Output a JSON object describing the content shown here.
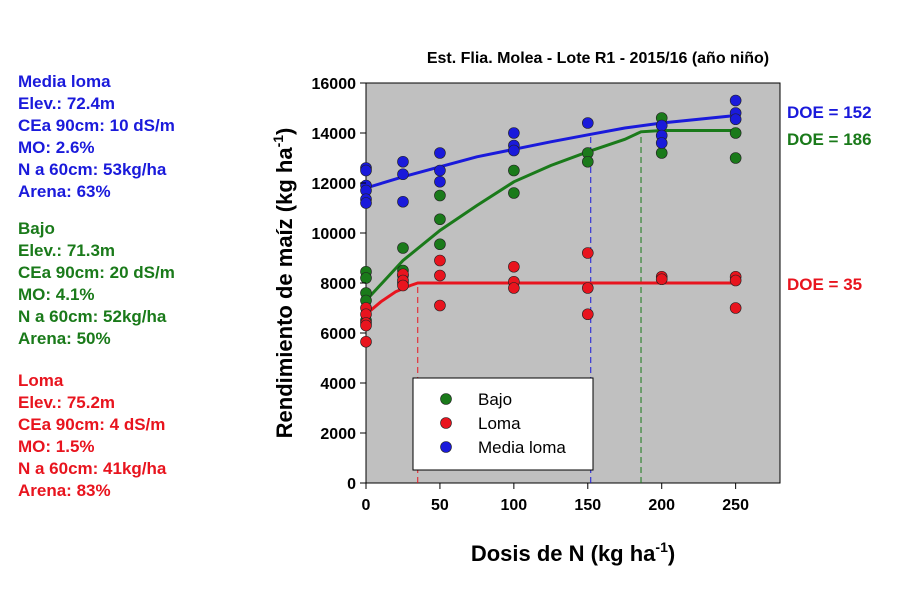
{
  "side_panels": [
    {
      "title": "Media loma",
      "color": "#1a1adb",
      "lines": [
        "Elev.: 72.4m",
        "CEa 90cm: 10 dS/m",
        "MO: 2.6%",
        "N a 60cm: 53kg/ha",
        "Arena: 63%"
      ]
    },
    {
      "title": "Bajo",
      "color": "#1a7a1a",
      "lines": [
        "Elev.: 71.3m",
        "CEa 90cm: 20 dS/m",
        "MO: 4.1%",
        "N a 60cm: 52kg/ha",
        "Arena: 50%"
      ]
    },
    {
      "title": "Loma",
      "color": "#e8141e",
      "lines": [
        "Elev.: 75.2m",
        "CEa 90cm: 4 dS/m",
        "MO: 1.5%",
        "N a 60cm: 41kg/ha",
        "Arena: 83%"
      ]
    }
  ],
  "chart_data": {
    "type": "scatter",
    "title": "Est.  Flia. Molea - Lote R1 - 2015/16 (año niño)",
    "xlabel": "Dosis de N (kg ha",
    "xlabel_sup": "-1",
    "xlabel_end": ")",
    "ylabel": "Rendimiento de maíz (kg ha",
    "ylabel_sup": "-1",
    "ylabel_end": ")",
    "xlim": [
      0,
      280
    ],
    "ylim": [
      0,
      16000
    ],
    "xticks": [
      0,
      50,
      100,
      150,
      200,
      250
    ],
    "yticks": [
      0,
      2000,
      4000,
      6000,
      8000,
      10000,
      12000,
      14000,
      16000
    ],
    "plot_background": "#c0c0c0",
    "legend_position": "bottom-center",
    "series": [
      {
        "name": "Bajo",
        "color": "#1a7a1a",
        "points": [
          [
            0,
            8450
          ],
          [
            0,
            8200
          ],
          [
            0,
            7600
          ],
          [
            0,
            7300
          ],
          [
            0,
            6500
          ],
          [
            25,
            9400
          ],
          [
            25,
            8500
          ],
          [
            25,
            8300
          ],
          [
            25,
            8000
          ],
          [
            50,
            11500
          ],
          [
            50,
            10550
          ],
          [
            50,
            9550
          ],
          [
            100,
            12500
          ],
          [
            100,
            11600
          ],
          [
            150,
            13200
          ],
          [
            150,
            12850
          ],
          [
            200,
            14600
          ],
          [
            200,
            13200
          ],
          [
            250,
            14000
          ],
          [
            250,
            13000
          ]
        ],
        "fit": [
          [
            0,
            7300
          ],
          [
            25,
            8900
          ],
          [
            50,
            10100
          ],
          [
            75,
            11100
          ],
          [
            100,
            12050
          ],
          [
            125,
            12700
          ],
          [
            150,
            13250
          ],
          [
            175,
            13750
          ],
          [
            186,
            14050
          ],
          [
            200,
            14100
          ],
          [
            250,
            14100
          ]
        ],
        "doe": 186,
        "doe_label": "DOE = 186"
      },
      {
        "name": "Loma",
        "color": "#e8141e",
        "points": [
          [
            0,
            7000
          ],
          [
            0,
            6750
          ],
          [
            0,
            6400
          ],
          [
            0,
            6300
          ],
          [
            0,
            5650
          ],
          [
            25,
            8350
          ],
          [
            25,
            8100
          ],
          [
            25,
            7900
          ],
          [
            50,
            8900
          ],
          [
            50,
            8300
          ],
          [
            50,
            7100
          ],
          [
            100,
            8650
          ],
          [
            100,
            8050
          ],
          [
            100,
            7800
          ],
          [
            150,
            9200
          ],
          [
            150,
            7800
          ],
          [
            150,
            6750
          ],
          [
            200,
            8250
          ],
          [
            200,
            8150
          ],
          [
            250,
            8250
          ],
          [
            250,
            8100
          ],
          [
            250,
            7000
          ]
        ],
        "fit": [
          [
            0,
            6750
          ],
          [
            10,
            7250
          ],
          [
            20,
            7650
          ],
          [
            30,
            7900
          ],
          [
            35,
            8000
          ],
          [
            250,
            8000
          ]
        ],
        "doe": 35,
        "doe_label": "DOE = 35"
      },
      {
        "name": "Media loma",
        "color": "#1a1adb",
        "points": [
          [
            0,
            12600
          ],
          [
            0,
            12500
          ],
          [
            0,
            11900
          ],
          [
            0,
            11700
          ],
          [
            0,
            11350
          ],
          [
            0,
            11200
          ],
          [
            25,
            12850
          ],
          [
            25,
            12350
          ],
          [
            25,
            11250
          ],
          [
            50,
            13200
          ],
          [
            50,
            12500
          ],
          [
            50,
            12050
          ],
          [
            100,
            14000
          ],
          [
            100,
            13500
          ],
          [
            100,
            13300
          ],
          [
            150,
            14400
          ],
          [
            200,
            14300
          ],
          [
            200,
            13900
          ],
          [
            200,
            13600
          ],
          [
            250,
            15300
          ],
          [
            250,
            14800
          ],
          [
            250,
            14550
          ]
        ],
        "fit": [
          [
            0,
            11800
          ],
          [
            25,
            12250
          ],
          [
            50,
            12650
          ],
          [
            75,
            13050
          ],
          [
            100,
            13350
          ],
          [
            125,
            13650
          ],
          [
            152,
            13950
          ],
          [
            175,
            14200
          ],
          [
            200,
            14400
          ],
          [
            225,
            14550
          ],
          [
            250,
            14700
          ]
        ],
        "doe": 152,
        "doe_label": "DOE = 152"
      }
    ]
  }
}
